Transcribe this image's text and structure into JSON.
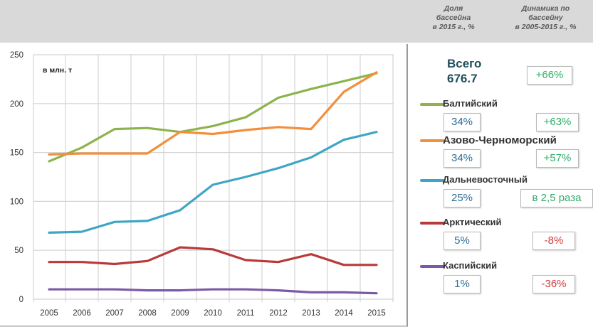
{
  "header": {
    "share_title": "Доля бассейна в 2015 г., %",
    "share_lines": [
      "Доля",
      "бассейна",
      "в 2015 г., %"
    ],
    "dyn_lines": [
      "Динамика по",
      "бассейну",
      "в 2005-2015 г., %"
    ]
  },
  "panel": {
    "total_label": "Всего",
    "total_value": "676.7",
    "total_change": "+66%",
    "basins": [
      {
        "name": "Балтийский",
        "share": "34%",
        "change": "+63%",
        "change_type": "positive",
        "color": "#8db34c"
      },
      {
        "name": "Азово-Черноморский",
        "share": "34%",
        "change": "+57%",
        "change_type": "positive",
        "color": "#f28f3b"
      },
      {
        "name": "Дальневосточный",
        "share": "25%",
        "change": "в 2,5 раза",
        "change_type": "positive",
        "color": "#3ea6c4"
      },
      {
        "name": "Арктический",
        "share": "5%",
        "change": "-8%",
        "change_type": "negative",
        "color": "#b83a3a"
      },
      {
        "name": "Каспийский",
        "share": "1%",
        "change": "-36%",
        "change_type": "negative",
        "color": "#7a5aa6"
      }
    ]
  },
  "chart_data": {
    "type": "line",
    "title": "",
    "unit_label": "в млн. т",
    "xlabel": "",
    "ylabel": "",
    "x": [
      "2005",
      "2006",
      "2007",
      "2008",
      "2009",
      "2010",
      "2011",
      "2012",
      "2013",
      "2014",
      "2015"
    ],
    "ylim": [
      0,
      250
    ],
    "yticks": [
      0,
      50,
      100,
      150,
      200,
      250
    ],
    "grid": true,
    "legend": "right",
    "series": [
      {
        "name": "Балтийский",
        "color": "#8db34c",
        "values": [
          141,
          155,
          174,
          175,
          171,
          177,
          186,
          206,
          215,
          223,
          231
        ]
      },
      {
        "name": "Азово-Черноморский",
        "color": "#f28f3b",
        "values": [
          148,
          149,
          149,
          149,
          171,
          169,
          173,
          176,
          174,
          212,
          232
        ]
      },
      {
        "name": "Дальневосточный",
        "color": "#3ea6c4",
        "values": [
          68,
          69,
          79,
          80,
          91,
          117,
          125,
          134,
          145,
          163,
          171
        ]
      },
      {
        "name": "Арктический",
        "color": "#b83a3a",
        "values": [
          38,
          38,
          36,
          39,
          53,
          51,
          40,
          38,
          46,
          35,
          35
        ]
      },
      {
        "name": "Каспийский",
        "color": "#7a5aa6",
        "values": [
          10,
          10,
          10,
          9,
          9,
          10,
          10,
          9,
          7,
          7,
          6
        ]
      }
    ]
  }
}
